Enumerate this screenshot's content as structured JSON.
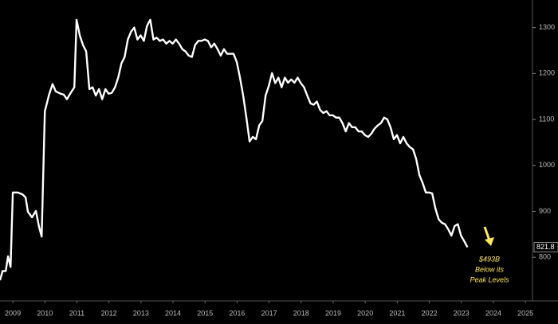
{
  "chart_data": {
    "type": "line",
    "x": [
      2009.1,
      2009.18,
      2009.28,
      2009.35,
      2009.43,
      2009.5,
      2009.65,
      2009.8,
      2009.9,
      2009.97,
      2010.1,
      2010.22,
      2010.32,
      2010.4,
      2010.5,
      2010.64,
      2010.74,
      2010.84,
      2010.99,
      2011.09,
      2011.19,
      2011.29,
      2011.42,
      2011.49,
      2011.59,
      2011.69,
      2011.79,
      2011.89,
      2011.99,
      2012.09,
      2012.19,
      2012.29,
      2012.39,
      2012.49,
      2012.59,
      2012.69,
      2012.79,
      2012.89,
      2012.99,
      2013.09,
      2013.19,
      2013.29,
      2013.39,
      2013.49,
      2013.59,
      2013.69,
      2013.79,
      2013.89,
      2013.99,
      2014.09,
      2014.19,
      2014.29,
      2014.39,
      2014.49,
      2014.59,
      2014.69,
      2014.79,
      2014.89,
      2014.99,
      2015.09,
      2015.19,
      2015.29,
      2015.39,
      2015.49,
      2015.59,
      2015.69,
      2015.79,
      2015.89,
      2015.99,
      2016.09,
      2016.19,
      2016.29,
      2016.39,
      2016.49,
      2016.59,
      2016.69,
      2016.79,
      2016.89,
      2016.99,
      2017.09,
      2017.19,
      2017.29,
      2017.39,
      2017.49,
      2017.59,
      2017.69,
      2017.79,
      2017.89,
      2017.99,
      2018.09,
      2018.19,
      2018.29,
      2018.39,
      2018.49,
      2018.59,
      2018.69,
      2018.79,
      2018.89,
      2018.99,
      2019.09,
      2019.19,
      2019.29,
      2019.39,
      2019.49,
      2019.59,
      2019.69,
      2019.79,
      2019.89,
      2019.99,
      2020.09,
      2020.19,
      2020.29,
      2020.39,
      2020.49,
      2020.59,
      2020.69,
      2020.79,
      2020.89,
      2020.99,
      2021.09,
      2021.19,
      2021.29,
      2021.39,
      2021.49,
      2021.59,
      2021.69,
      2021.79,
      2021.89,
      2021.99,
      2022.09,
      2022.19,
      2022.29,
      2022.39,
      2022.49,
      2022.59,
      2022.69,
      2022.79,
      2022.89,
      2022.99,
      2023.09,
      2023.19,
      2023.29,
      2023.39,
      2023.49,
      2023.59,
      2023.69
    ],
    "series": [
      {
        "color": "#ffffff",
        "values": [
          750,
          770,
          770,
          802,
          779,
          941,
          941,
          937,
          930,
          899,
          887,
          901,
          866,
          845,
          1118,
          1156,
          1177,
          1161,
          1156,
          1154,
          1144,
          1156,
          1170,
          1317,
          1283,
          1262,
          1248,
          1166,
          1170,
          1152,
          1166,
          1144,
          1166,
          1156,
          1158,
          1170,
          1191,
          1222,
          1236,
          1274,
          1291,
          1300,
          1274,
          1283,
          1271,
          1304,
          1317,
          1274,
          1278,
          1271,
          1274,
          1265,
          1271,
          1265,
          1274,
          1265,
          1253,
          1248,
          1239,
          1236,
          1262,
          1271,
          1271,
          1274,
          1271,
          1257,
          1265,
          1253,
          1239,
          1253,
          1243,
          1243,
          1243,
          1225,
          1191,
          1152,
          1104,
          1052,
          1062,
          1057,
          1087,
          1097,
          1152,
          1173,
          1201,
          1179,
          1191,
          1170,
          1191,
          1180,
          1187,
          1180,
          1191,
          1179,
          1170,
          1152,
          1135,
          1132,
          1139,
          1121,
          1114,
          1118,
          1109,
          1109,
          1104,
          1104,
          1092,
          1074,
          1092,
          1083,
          1083,
          1074,
          1074,
          1066,
          1062,
          1069,
          1080,
          1087,
          1092,
          1104,
          1100,
          1083,
          1057,
          1066,
          1048,
          1062,
          1048,
          1040,
          1035,
          1014,
          979,
          962,
          941,
          941,
          939,
          906,
          883,
          875,
          872,
          861,
          847,
          868,
          872,
          847,
          835,
          821.8
        ]
      }
    ],
    "xlim": [
      2009.1,
      2025.72
    ],
    "xticks": [
      {
        "value": 2009.5,
        "label": "2009"
      },
      {
        "value": 2010.5,
        "label": "2010"
      },
      {
        "value": 2011.5,
        "label": "2011"
      },
      {
        "value": 2012.5,
        "label": "2012"
      },
      {
        "value": 2013.5,
        "label": "2013"
      },
      {
        "value": 2014.5,
        "label": "2014"
      },
      {
        "value": 2015.5,
        "label": "2015"
      },
      {
        "value": 2016.5,
        "label": "2016"
      },
      {
        "value": 2017.5,
        "label": "2017"
      },
      {
        "value": 2018.5,
        "label": "2018"
      },
      {
        "value": 2019.5,
        "label": "2019"
      },
      {
        "value": 2020.5,
        "label": "2020"
      },
      {
        "value": 2021.5,
        "label": "2021"
      },
      {
        "value": 2022.5,
        "label": "2022"
      },
      {
        "value": 2023.5,
        "label": "2023"
      },
      {
        "value": 2024.5,
        "label": "2024"
      },
      {
        "value": 2025.5,
        "label": "2025"
      }
    ],
    "ylim": [
      705,
      1360
    ],
    "yticks": [
      800,
      900,
      1000,
      1100,
      1200,
      1300
    ],
    "annotation": [
      "$493B",
      "Below its",
      "Peak Levels"
    ],
    "annotation_color": "#ffe94a"
  }
}
